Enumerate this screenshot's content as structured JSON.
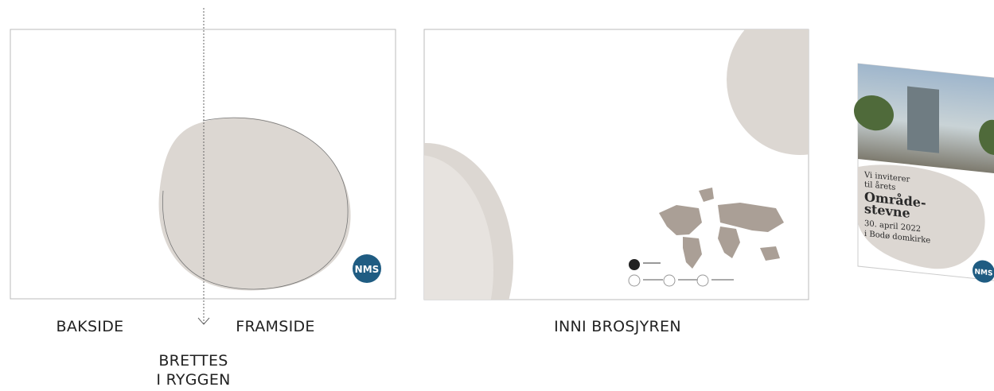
{
  "back_front": {
    "back_label": "BAKSIDE",
    "front_label": "FRAMSIDE",
    "fold_label": [
      "BRETTES",
      "I RYGGEN"
    ],
    "logo": "NMS"
  },
  "inside": {
    "label": "INNI BROSJYREN"
  },
  "cover": {
    "lines": [
      "Vi inviterer",
      "til årets",
      "Område-",
      "stevne",
      "30. april 2022",
      "i Bodø domkirke"
    ],
    "logo": "NMS"
  }
}
